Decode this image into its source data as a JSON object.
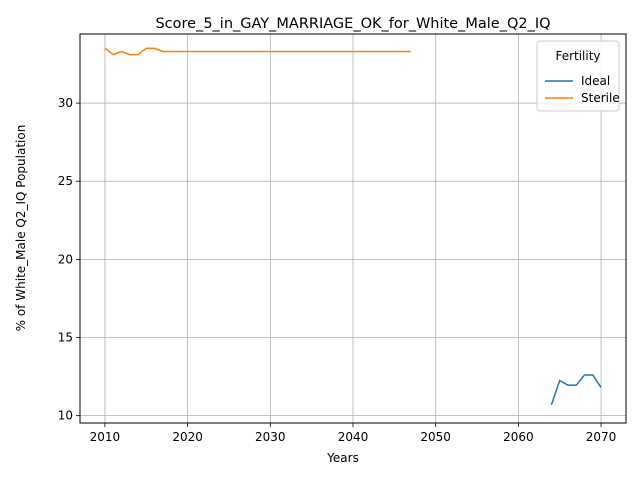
{
  "chart_data": {
    "type": "line",
    "title": "Score_5_in_GAY_MARRIAGE_OK_for_White_Male_Q2_IQ",
    "xlabel": "Years",
    "ylabel": "% of White_Male Q2_IQ Population",
    "xlim": [
      2006.984,
      2073.016
    ],
    "ylim": [
      9.53,
      34.42
    ],
    "xticks": [
      2010,
      2020,
      2030,
      2040,
      2050,
      2060,
      2070
    ],
    "yticks": [
      10,
      15,
      20,
      25,
      30
    ],
    "grid": true,
    "legend": {
      "title": "Fertility",
      "placement": "top-right"
    },
    "series": [
      {
        "name": "Ideal",
        "color": "#1f77b4",
        "x": [
          2064,
          2065,
          2066,
          2067,
          2068,
          2069,
          2070
        ],
        "y": [
          10.7,
          12.25,
          11.95,
          11.95,
          12.6,
          12.6,
          11.8
        ]
      },
      {
        "name": "Sterile",
        "color": "#ff7f0e",
        "x": [
          2010,
          2011,
          2012,
          2013,
          2014,
          2015,
          2016,
          2017,
          2018,
          2019,
          2020,
          2021,
          2022,
          2023,
          2024,
          2025,
          2026,
          2027,
          2028,
          2029,
          2030,
          2031,
          2032,
          2033,
          2034,
          2035,
          2036,
          2037,
          2038,
          2039,
          2040,
          2041,
          2042,
          2043,
          2044,
          2045,
          2046,
          2047
        ],
        "y": [
          33.5,
          33.1,
          33.3,
          33.1,
          33.1,
          33.5,
          33.5,
          33.3,
          33.3,
          33.3,
          33.3,
          33.3,
          33.3,
          33.3,
          33.3,
          33.3,
          33.3,
          33.3,
          33.3,
          33.3,
          33.3,
          33.3,
          33.3,
          33.3,
          33.3,
          33.3,
          33.3,
          33.3,
          33.3,
          33.3,
          33.3,
          33.3,
          33.3,
          33.3,
          33.3,
          33.3,
          33.3,
          33.3
        ]
      }
    ]
  }
}
